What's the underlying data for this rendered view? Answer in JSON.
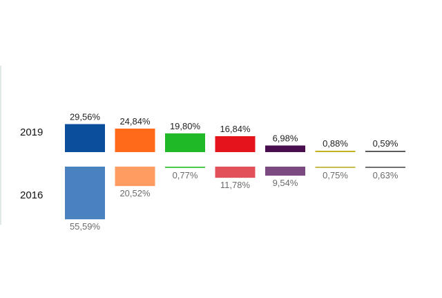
{
  "chart_data": {
    "type": "bar",
    "title": "",
    "xlabel": "",
    "ylabel": "",
    "layout": "mirrored",
    "ylim": [
      0,
      60
    ],
    "series": [
      {
        "name": "2019",
        "values": [
          29.56,
          24.84,
          19.8,
          16.84,
          6.98,
          0.88,
          0.59
        ],
        "labels": [
          "29,56%",
          "24,84%",
          "19,80%",
          "16,84%",
          "6,98%",
          "0,88%",
          "0,59%"
        ],
        "colors": [
          "#0b4f9c",
          "#ff6a1a",
          "#1fb826",
          "#e3141b",
          "#4a0e4e",
          "#c2b31f",
          "#5a5a5a"
        ]
      },
      {
        "name": "2016",
        "values": [
          55.59,
          20.52,
          0.77,
          11.78,
          9.54,
          0.75,
          0.63
        ],
        "labels": [
          "55,59%",
          "20,52%",
          "0,77%",
          "11,78%",
          "9,54%",
          "0,75%",
          "0,63%"
        ],
        "colors": [
          "#4a82c0",
          "#ff9c62",
          "#4bc94a",
          "#e2505a",
          "#7b4a80",
          "#c7bc4c",
          "#6f6f6f"
        ]
      }
    ]
  }
}
